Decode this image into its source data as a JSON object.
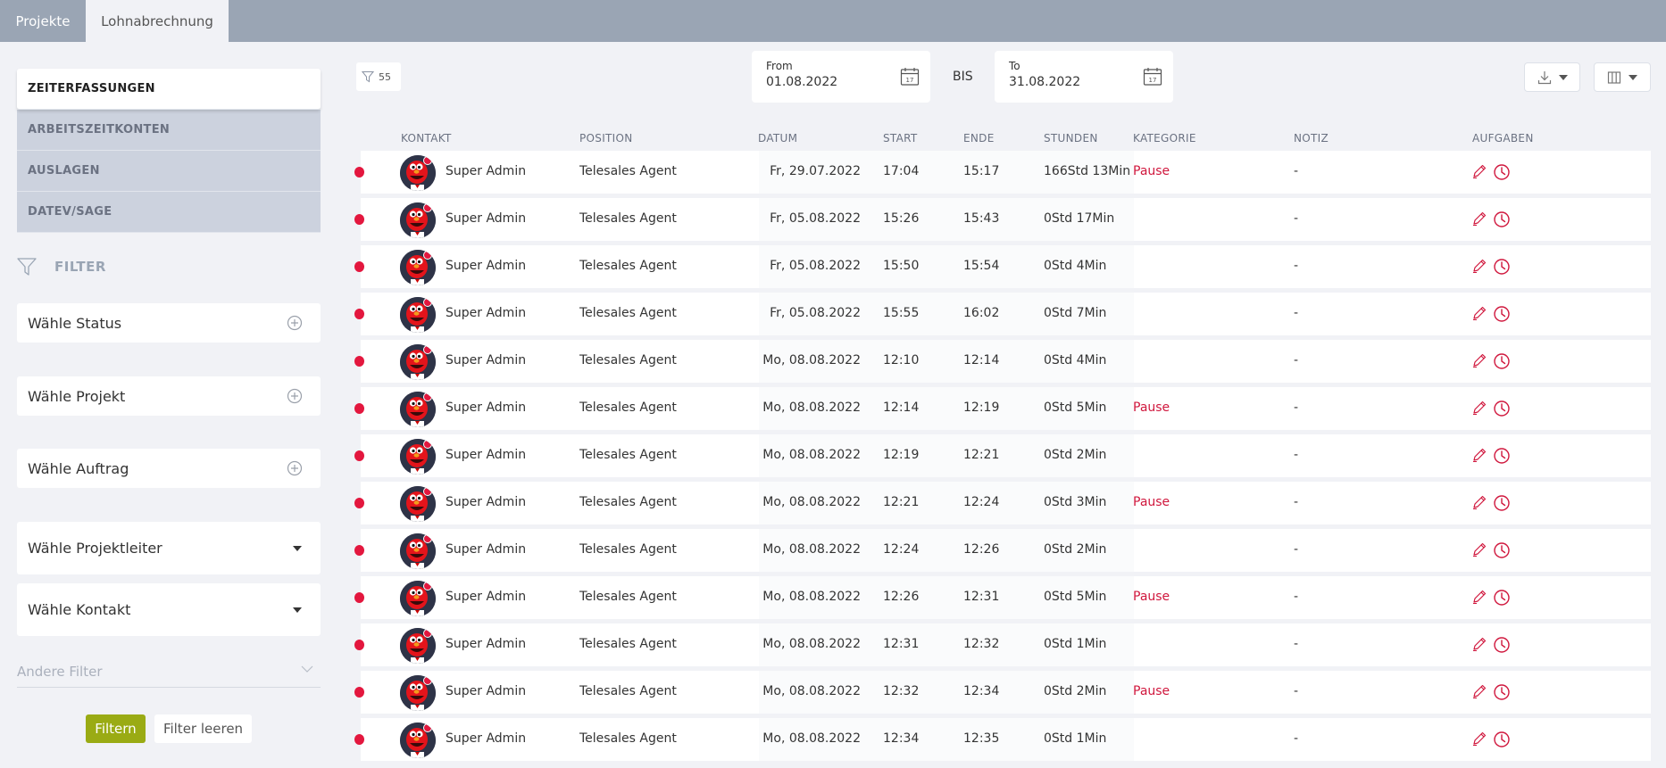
{
  "tabs": [
    {
      "label": "Projekte"
    },
    {
      "label": "Lohnabrechnung"
    }
  ],
  "sidebar": {
    "nav": [
      {
        "label": "ZEITERFASSUNGEN"
      },
      {
        "label": "ARBEITSZEITKONTEN"
      },
      {
        "label": "AUSLAGEN"
      },
      {
        "label": "DATEV/SAGE"
      }
    ],
    "filter_heading": "FILTER",
    "selects": [
      {
        "label": "Wähle Status",
        "icon": "plus-circle-icon"
      },
      {
        "label": "Wähle Projekt",
        "icon": "plus-circle-icon"
      },
      {
        "label": "Wähle Auftrag",
        "icon": "plus-circle-icon"
      },
      {
        "label": "Wähle Projektleiter",
        "icon": "caret-down-icon"
      },
      {
        "label": "Wähle Kontakt",
        "icon": "caret-down-icon"
      }
    ],
    "other_filter": "Andere Filter",
    "filter_button": "Filtern",
    "clear_button": "Filter leeren"
  },
  "toolbar": {
    "filter_count": "55",
    "from_label": "From",
    "from_value": "01.08.2022",
    "bis": "BIS",
    "to_label": "To",
    "to_value": "31.08.2022"
  },
  "columns": [
    "KONTAKT",
    "POSITION",
    "DATUM",
    "START",
    "ENDE",
    "STUNDEN",
    "KATEGORIE",
    "NOTIZ",
    "AUFGABEN"
  ],
  "rows": [
    {
      "name": "Super Admin",
      "position": "Telesales Agent",
      "date": "Fr, 29.07.2022",
      "start": "17:04",
      "end": "15:17",
      "hours": "166Std 13Min",
      "category": "Pause",
      "note": "-"
    },
    {
      "name": "Super Admin",
      "position": "Telesales Agent",
      "date": "Fr, 05.08.2022",
      "start": "15:26",
      "end": "15:43",
      "hours": "0Std 17Min",
      "category": "",
      "note": "-"
    },
    {
      "name": "Super Admin",
      "position": "Telesales Agent",
      "date": "Fr, 05.08.2022",
      "start": "15:50",
      "end": "15:54",
      "hours": "0Std 4Min",
      "category": "",
      "note": "-"
    },
    {
      "name": "Super Admin",
      "position": "Telesales Agent",
      "date": "Fr, 05.08.2022",
      "start": "15:55",
      "end": "16:02",
      "hours": "0Std 7Min",
      "category": "",
      "note": "-"
    },
    {
      "name": "Super Admin",
      "position": "Telesales Agent",
      "date": "Mo, 08.08.2022",
      "start": "12:10",
      "end": "12:14",
      "hours": "0Std 4Min",
      "category": "",
      "note": "-"
    },
    {
      "name": "Super Admin",
      "position": "Telesales Agent",
      "date": "Mo, 08.08.2022",
      "start": "12:14",
      "end": "12:19",
      "hours": "0Std 5Min",
      "category": "Pause",
      "note": "-"
    },
    {
      "name": "Super Admin",
      "position": "Telesales Agent",
      "date": "Mo, 08.08.2022",
      "start": "12:19",
      "end": "12:21",
      "hours": "0Std 2Min",
      "category": "",
      "note": "-"
    },
    {
      "name": "Super Admin",
      "position": "Telesales Agent",
      "date": "Mo, 08.08.2022",
      "start": "12:21",
      "end": "12:24",
      "hours": "0Std 3Min",
      "category": "Pause",
      "note": "-"
    },
    {
      "name": "Super Admin",
      "position": "Telesales Agent",
      "date": "Mo, 08.08.2022",
      "start": "12:24",
      "end": "12:26",
      "hours": "0Std 2Min",
      "category": "",
      "note": "-"
    },
    {
      "name": "Super Admin",
      "position": "Telesales Agent",
      "date": "Mo, 08.08.2022",
      "start": "12:26",
      "end": "12:31",
      "hours": "0Std 5Min",
      "category": "Pause",
      "note": "-"
    },
    {
      "name": "Super Admin",
      "position": "Telesales Agent",
      "date": "Mo, 08.08.2022",
      "start": "12:31",
      "end": "12:32",
      "hours": "0Std 1Min",
      "category": "",
      "note": "-"
    },
    {
      "name": "Super Admin",
      "position": "Telesales Agent",
      "date": "Mo, 08.08.2022",
      "start": "12:32",
      "end": "12:34",
      "hours": "0Std 2Min",
      "category": "Pause",
      "note": "-"
    },
    {
      "name": "Super Admin",
      "position": "Telesales Agent",
      "date": "Mo, 08.08.2022",
      "start": "12:34",
      "end": "12:35",
      "hours": "0Std 1Min",
      "category": "",
      "note": "-"
    }
  ],
  "colors": {
    "topbar": "#9aa5b4",
    "accent_red": "#e3173e",
    "filter_green": "#9aab14"
  }
}
